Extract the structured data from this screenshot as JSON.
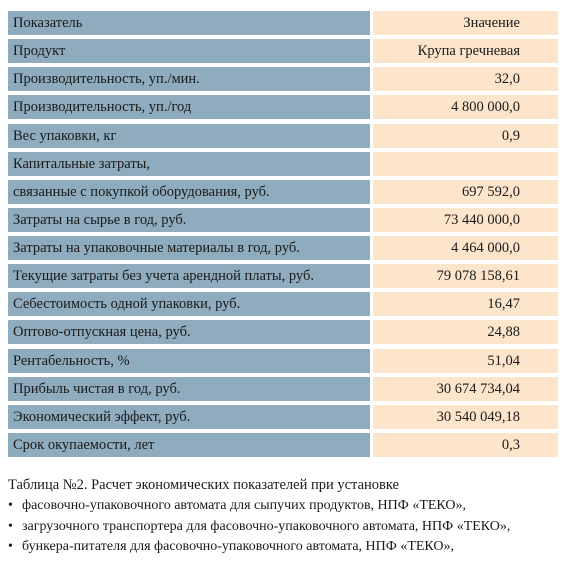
{
  "table": {
    "header": [
      "Показатель",
      "Значение"
    ],
    "rows": [
      [
        "Продукт",
        "Крупа гречневая"
      ],
      [
        "Производительность, уп./мин.",
        "32,0"
      ],
      [
        "Производительность, уп./год",
        "4 800 000,0"
      ],
      [
        "Вес упаковки, кг",
        "0,9"
      ],
      [
        "Капитальные затраты,"
      ],
      [
        "связанные с покупкой оборудования, руб.",
        "697 592,0"
      ],
      [
        "Затраты на сырье в год, руб.",
        "73 440 000,0"
      ],
      [
        "Затраты на упаковочные материалы в год, руб.",
        "4 464 000,0"
      ],
      [
        "Текущие затраты без учета арендной платы, руб.",
        "79 078 158,61"
      ],
      [
        "Себестоимость одной упаковки, руб.",
        "16,47"
      ],
      [
        "Оптово-отпускная цена, руб.",
        "24,88"
      ],
      [
        "Рентабельность, %",
        "51,04"
      ],
      [
        "Прибыль чистая в год, руб.",
        "30 674 734,04"
      ],
      [
        "Экономический эффект, руб.",
        "30 540 049,18"
      ],
      [
        "Срок окупаемости, лет",
        "0,3"
      ]
    ]
  },
  "caption": "Таблица №2. Расчет экономических показателей при установке",
  "bullets": [
    "фасовочно-упаковочного автомата для сыпучих продуктов,  НПФ «ТЕКО»,",
    "загрузочного транспортера для фасовочно-упаковочного автомата, НПФ «ТЕКО»,",
    "бункера-питателя для фасовочно-упаковочного автомата, НПФ «ТЕКО»,"
  ]
}
